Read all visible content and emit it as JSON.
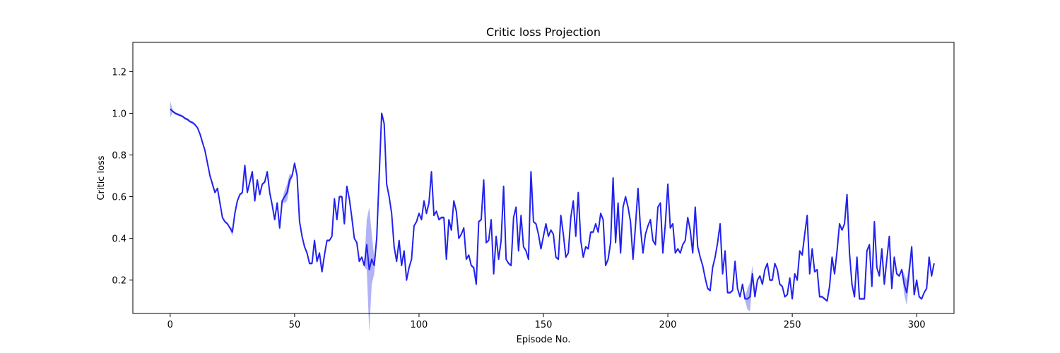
{
  "chart_data": {
    "type": "line",
    "title": "Critic loss Projection",
    "xlabel": "Episode No.",
    "ylabel": "Critic loss",
    "xlim": [
      -15,
      315
    ],
    "ylim": [
      0.04,
      1.34
    ],
    "xticks": [
      0,
      50,
      100,
      150,
      200,
      250,
      300
    ],
    "yticks": [
      0.2,
      0.4,
      0.6,
      0.8,
      1.0,
      1.2
    ],
    "xtick_labels": [
      "0",
      "50",
      "100",
      "150",
      "200",
      "250",
      "300"
    ],
    "ytick_labels": [
      "0.2",
      "0.4",
      "0.6",
      "0.8",
      "1.0",
      "1.2"
    ],
    "grid": false,
    "colors": {
      "line": "#2222ee",
      "band": "#8888f0"
    },
    "series": [
      {
        "x_start": 0,
        "x_step": 1,
        "values": [
          1.02,
          1.01,
          1.0,
          0.995,
          0.99,
          0.985,
          0.975,
          0.97,
          0.96,
          0.955,
          0.945,
          0.93,
          0.9,
          0.86,
          0.82,
          0.76,
          0.7,
          0.66,
          0.62,
          0.64,
          0.57,
          0.5,
          0.48,
          0.47,
          0.45,
          0.43,
          0.52,
          0.58,
          0.61,
          0.62,
          0.75,
          0.62,
          0.67,
          0.72,
          0.58,
          0.68,
          0.61,
          0.66,
          0.67,
          0.72,
          0.62,
          0.56,
          0.49,
          0.57,
          0.45,
          0.58,
          0.6,
          0.62,
          0.68,
          0.7,
          0.76,
          0.7,
          0.48,
          0.41,
          0.36,
          0.33,
          0.28,
          0.28,
          0.39,
          0.29,
          0.33,
          0.24,
          0.32,
          0.39,
          0.39,
          0.41,
          0.59,
          0.49,
          0.6,
          0.6,
          0.47,
          0.65,
          0.59,
          0.5,
          0.4,
          0.38,
          0.29,
          0.31,
          0.27,
          0.37,
          0.25,
          0.3,
          0.27,
          0.4,
          0.7,
          1.0,
          0.95,
          0.66,
          0.6,
          0.52,
          0.36,
          0.29,
          0.39,
          0.27,
          0.34,
          0.2,
          0.26,
          0.3,
          0.46,
          0.48,
          0.52,
          0.49,
          0.58,
          0.52,
          0.57,
          0.72,
          0.51,
          0.53,
          0.49,
          0.5,
          0.5,
          0.3,
          0.49,
          0.44,
          0.58,
          0.53,
          0.4,
          0.42,
          0.45,
          0.3,
          0.32,
          0.27,
          0.26,
          0.18,
          0.48,
          0.49,
          0.68,
          0.38,
          0.39,
          0.49,
          0.23,
          0.41,
          0.3,
          0.39,
          0.65,
          0.3,
          0.28,
          0.27,
          0.5,
          0.55,
          0.34,
          0.51,
          0.36,
          0.34,
          0.3,
          0.72,
          0.48,
          0.47,
          0.42,
          0.35,
          0.41,
          0.47,
          0.41,
          0.44,
          0.42,
          0.31,
          0.3,
          0.51,
          0.42,
          0.31,
          0.33,
          0.5,
          0.58,
          0.41,
          0.62,
          0.39,
          0.31,
          0.36,
          0.35,
          0.43,
          0.43,
          0.47,
          0.43,
          0.52,
          0.49,
          0.27,
          0.3,
          0.38,
          0.69,
          0.38,
          0.57,
          0.33,
          0.55,
          0.6,
          0.55,
          0.48,
          0.3,
          0.46,
          0.64,
          0.45,
          0.33,
          0.42,
          0.46,
          0.49,
          0.39,
          0.37,
          0.55,
          0.57,
          0.33,
          0.47,
          0.66,
          0.45,
          0.47,
          0.33,
          0.35,
          0.33,
          0.37,
          0.39,
          0.5,
          0.44,
          0.33,
          0.55,
          0.36,
          0.31,
          0.27,
          0.21,
          0.16,
          0.15,
          0.26,
          0.31,
          0.38,
          0.47,
          0.23,
          0.34,
          0.14,
          0.14,
          0.15,
          0.29,
          0.16,
          0.12,
          0.18,
          0.11,
          0.11,
          0.12,
          0.23,
          0.12,
          0.2,
          0.22,
          0.18,
          0.25,
          0.28,
          0.2,
          0.2,
          0.28,
          0.25,
          0.18,
          0.17,
          0.12,
          0.13,
          0.21,
          0.11,
          0.23,
          0.2,
          0.34,
          0.32,
          0.42,
          0.51,
          0.23,
          0.35,
          0.24,
          0.25,
          0.12,
          0.12,
          0.11,
          0.1,
          0.17,
          0.31,
          0.23,
          0.34,
          0.47,
          0.44,
          0.47,
          0.61,
          0.33,
          0.18,
          0.12,
          0.31,
          0.11,
          0.11,
          0.11,
          0.34,
          0.37,
          0.17,
          0.48,
          0.26,
          0.22,
          0.35,
          0.18,
          0.3,
          0.41,
          0.16,
          0.31,
          0.23,
          0.22,
          0.25,
          0.18,
          0.14,
          0.24,
          0.36,
          0.13,
          0.2,
          0.12,
          0.11,
          0.14,
          0.16,
          0.31,
          0.22,
          0.28
        ]
      }
    ],
    "band_half_width": {
      "default": 0.006,
      "overrides": {
        "0": 0.04,
        "15": 0.015,
        "17": 0.015,
        "25": 0.02,
        "46": 0.03,
        "47": 0.04,
        "48": 0.03,
        "58": 0.015,
        "59": 0.015,
        "79": 0.12,
        "80": 0.3,
        "81": 0.12,
        "82": 0.04,
        "83": 0.03,
        "84": 0.02,
        "232": 0.05,
        "233": 0.07,
        "234": 0.04,
        "295": 0.05,
        "296": 0.06,
        "297": 0.04
      }
    }
  }
}
